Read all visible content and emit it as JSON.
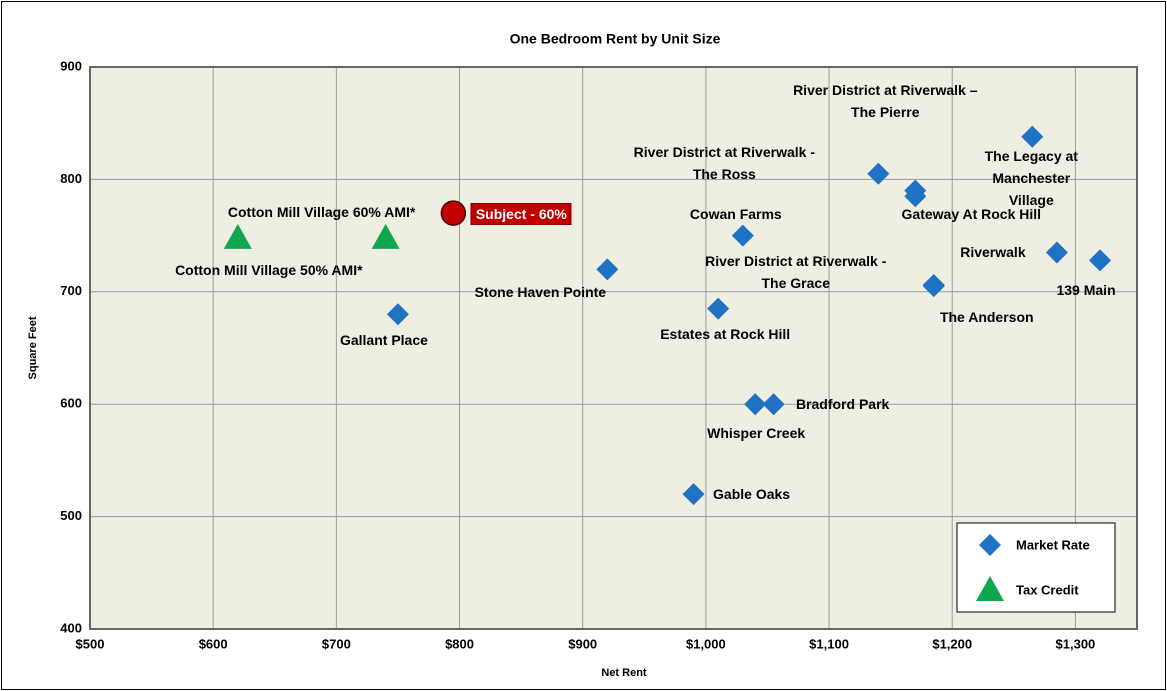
{
  "chart_data": {
    "type": "scatter",
    "title": "One Bedroom Rent by Unit Size",
    "x_label": "Net Rent",
    "y_label": "Square Feet",
    "xlim": [
      500,
      1350
    ],
    "ylim": [
      400,
      900
    ],
    "xticks": [
      {
        "value": 500,
        "label": "$500"
      },
      {
        "value": 600,
        "label": "$600"
      },
      {
        "value": 700,
        "label": "$700"
      },
      {
        "value": 800,
        "label": "$800"
      },
      {
        "value": 900,
        "label": "$900"
      },
      {
        "value": 1000,
        "label": "$1,000"
      },
      {
        "value": 1100,
        "label": "$1,100"
      },
      {
        "value": 1200,
        "label": "$1,200"
      },
      {
        "value": 1300,
        "label": "$1,300"
      }
    ],
    "yticks": [
      400,
      500,
      600,
      700,
      800,
      900
    ],
    "grid": true,
    "legend": "lower right",
    "series": [
      {
        "name": "Market Rate",
        "color": "#1f72c4",
        "marker": "diamond",
        "x": [
          990,
          1040,
          1055,
          1010,
          1030,
          920,
          750,
          1140,
          1170,
          1170,
          1265,
          1185,
          1185,
          1285,
          1320
        ],
        "values": [
          520,
          600,
          600,
          685,
          750,
          720,
          680,
          805,
          790,
          785,
          838,
          706,
          705,
          735,
          728
        ],
        "labels": [
          "Gable Oaks",
          "Whisper Creek",
          "Bradford Park",
          "Estates at Rock Hill",
          "Cowan Farms",
          "Stone Haven Pointe",
          "Gallant Place",
          "River District at Riverwalk -\nThe Ross",
          "River District at Riverwalk –\nThe Pierre",
          "Gateway At Rock Hill",
          "The Legacy at Manchester\nVillage",
          "River District at Riverwalk -\nThe Grace",
          "The Anderson",
          "Riverwalk",
          "139 Main"
        ]
      },
      {
        "name": "Tax Credit",
        "color": "#12a64f",
        "marker": "triangle",
        "x": [
          740,
          620
        ],
        "values": [
          748,
          748
        ],
        "labels": [
          "Cotton Mill Village 60% AMI*",
          "Cotton Mill Village 50% AMI*"
        ]
      },
      {
        "color": "#c00000",
        "marker": "circle",
        "x": [
          795
        ],
        "values": [
          770
        ],
        "labels": [
          "Subject - 60%"
        ]
      }
    ]
  }
}
